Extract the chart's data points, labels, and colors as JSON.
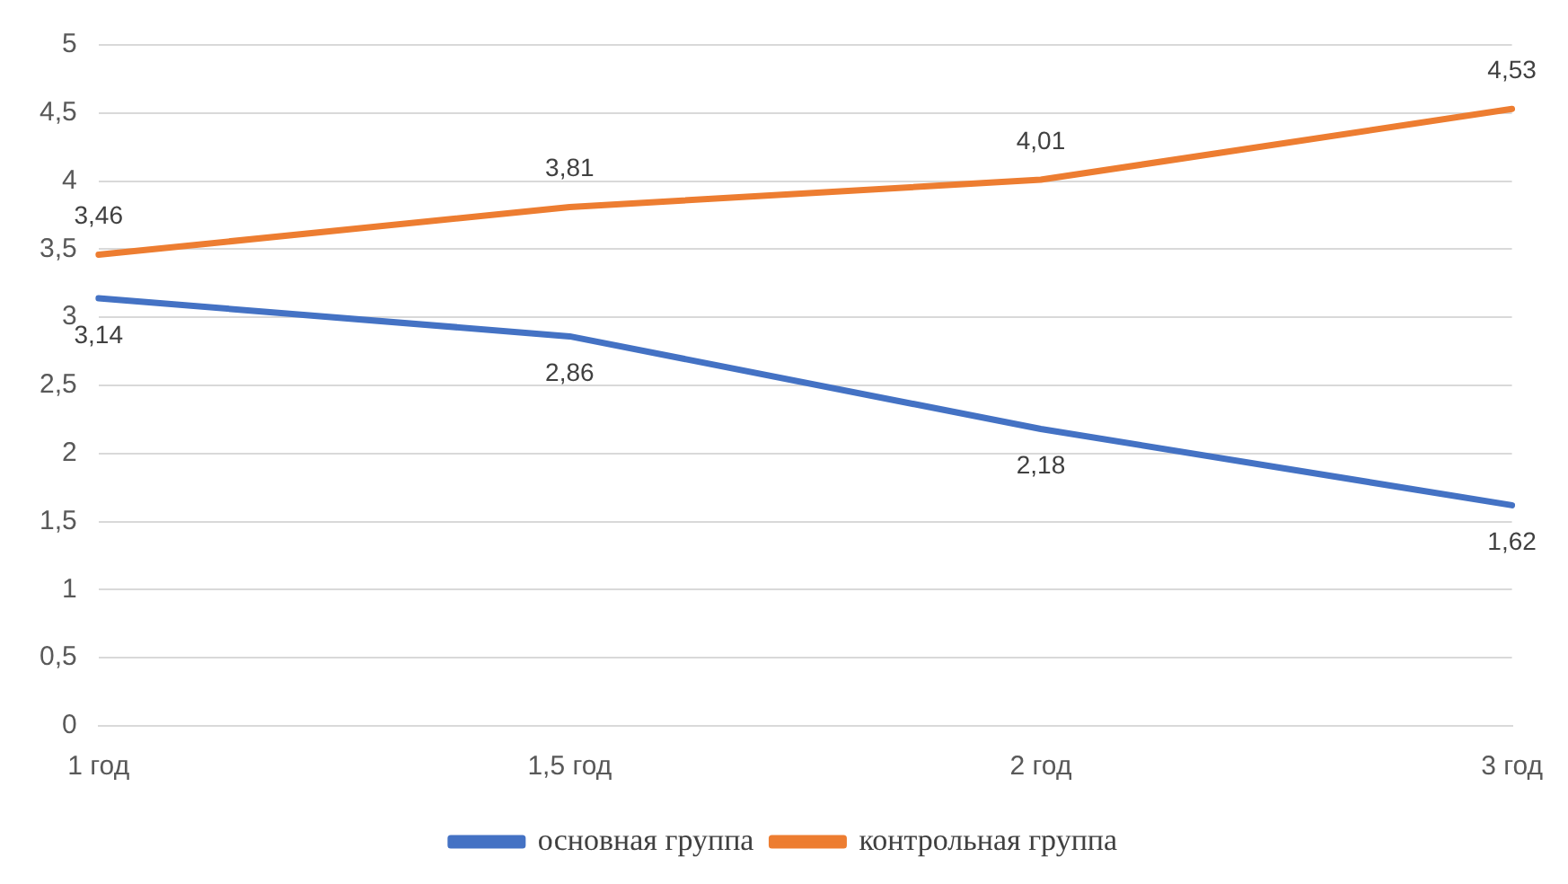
{
  "chart_data": {
    "type": "line",
    "categories": [
      "1 год",
      "1,5 год",
      "2 год",
      "3 год"
    ],
    "series": [
      {
        "name": "основная группа",
        "color": "#4472c4",
        "values": [
          3.14,
          2.86,
          2.18,
          1.62
        ],
        "value_labels": [
          "3,14",
          "2,86",
          "2,18",
          "1,62"
        ]
      },
      {
        "name": "контрольная группа",
        "color": "#ed7d31",
        "values": [
          3.46,
          3.81,
          4.01,
          4.53
        ],
        "value_labels": [
          "3,46",
          "3,81",
          "4,01",
          "4,53"
        ]
      }
    ],
    "ylim": [
      0,
      5
    ],
    "yticks": [
      0,
      {
        "value": 0.5,
        "label": "0,5"
      },
      1,
      {
        "value": 1.5,
        "label": "1,5"
      },
      2,
      {
        "value": 2.5,
        "label": "2,5"
      },
      3,
      {
        "value": 3.5,
        "label": "3,5"
      },
      4,
      {
        "value": 4.5,
        "label": "4,5"
      },
      5
    ],
    "grid": "y",
    "legend": "bottom",
    "marker": "none",
    "line_style": "solid"
  }
}
